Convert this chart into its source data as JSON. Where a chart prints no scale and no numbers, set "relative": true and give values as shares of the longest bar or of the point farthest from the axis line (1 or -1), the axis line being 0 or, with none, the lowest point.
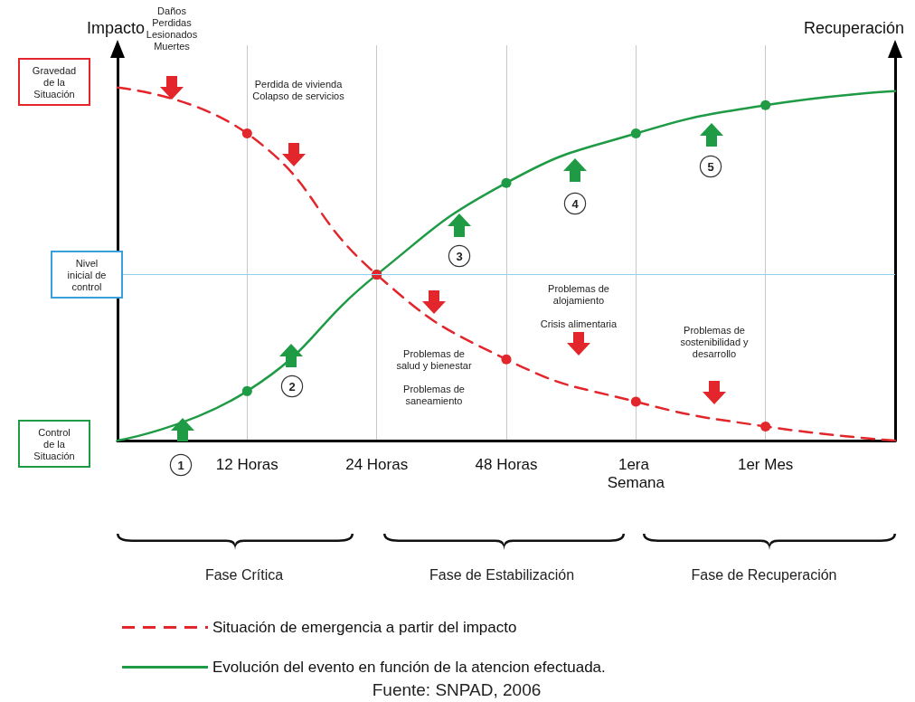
{
  "chart_data": {
    "type": "line",
    "relative": true,
    "ylabel": "Impacto",
    "y2label": "Recuperación",
    "categories": [
      null,
      "12 Horas",
      "24 Horas",
      "48 Horas",
      "1era Semana",
      "1er Mes",
      null
    ],
    "series": [
      {
        "name": "Situación de emergencia a partir del impacto",
        "color": "#e3262b",
        "line_style": "dashed",
        "values": [
          1,
          0.87,
          0.47,
          0.23,
          0.11,
          0.04,
          0
        ]
      },
      {
        "name": "Evolución del evento en función de la atencion efectuada.",
        "color": "#1f9a45",
        "line_style": "solid",
        "values": [
          0,
          0.14,
          0.47,
          0.73,
          0.87,
          0.95,
          0.99
        ]
      }
    ],
    "ref_lines": [
      {
        "axis": "y",
        "value": 0.47,
        "label": "Nivel\ninicial de\ncontrol",
        "color": "#8fd0ee"
      }
    ],
    "annotations": [
      "Daños\nPerdidas\nLesionados\nMuertes",
      "Perdida de vivienda\nColapso de servicios",
      "Problemas de\nsalud y bienestar\n\nProblemas de\nsaneamiento",
      "Problemas de\nalojamiento\n\nCrisis alimentaria",
      "Problemas de\nsostenibilidad y\ndesarrollo",
      "Gravedad\nde la\nSituación",
      "Control\nde la\nSituación",
      "1",
      "2",
      "3",
      "4",
      "5",
      "Fase Crítica",
      "Fase de Estabilización",
      "Fase de Recuperación",
      "Fuente: SNPAD, 2006"
    ],
    "grid": "x",
    "marker": "circle",
    "legend": "bottom"
  }
}
